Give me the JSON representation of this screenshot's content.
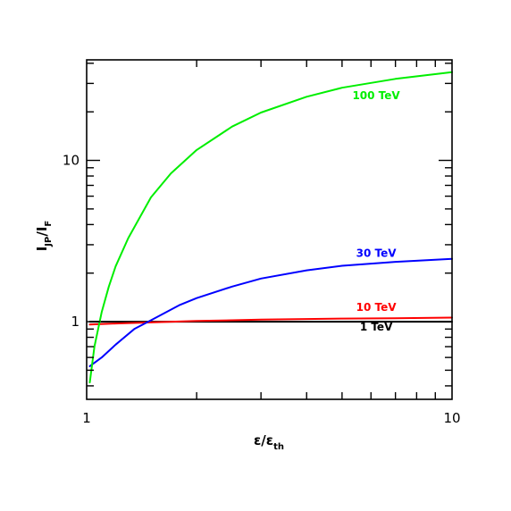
{
  "chart_data": {
    "type": "line",
    "x_scale": "log",
    "y_scale": "log",
    "xlim": [
      1,
      10
    ],
    "ylim": [
      0.33,
      42
    ],
    "xlabel": {
      "main": "ε/ε",
      "sub": "th"
    },
    "ylabel": {
      "main1": "I",
      "sub1": "JP",
      "main2": "/I",
      "sub2": "F"
    },
    "x_ticks": [
      {
        "value": 1,
        "label": "1"
      },
      {
        "value": 10,
        "label": "10"
      }
    ],
    "y_ticks": [
      {
        "value": 1,
        "label": "1"
      },
      {
        "value": 10,
        "label": "10"
      }
    ],
    "grid": false,
    "legend": "inline labels",
    "series": [
      {
        "name": "1 TeV",
        "color": "#000000",
        "x": [
          1.02,
          1.5,
          2,
          3,
          5,
          7,
          10
        ],
        "y": [
          1.0,
          1.0,
          1.0,
          1.0,
          1.0,
          1.0,
          1.0
        ],
        "label_at": {
          "x": 6.2,
          "y": 0.88
        }
      },
      {
        "name": "10 TeV",
        "color": "#ff0000",
        "x": [
          1.02,
          1.2,
          1.5,
          2,
          3,
          5,
          7,
          10
        ],
        "y": [
          0.96,
          0.975,
          0.99,
          1.01,
          1.03,
          1.045,
          1.05,
          1.06
        ],
        "label_at": {
          "x": 6.2,
          "y": 1.17
        }
      },
      {
        "name": "30 TeV",
        "color": "#0000ff",
        "x": [
          1.02,
          1.1,
          1.2,
          1.35,
          1.5,
          1.8,
          2,
          2.5,
          3,
          4,
          5,
          7,
          10
        ],
        "y": [
          0.53,
          0.6,
          0.72,
          0.9,
          1.02,
          1.27,
          1.4,
          1.65,
          1.85,
          2.08,
          2.22,
          2.35,
          2.45
        ],
        "label_at": {
          "x": 6.2,
          "y": 2.52
        }
      },
      {
        "name": "100 TeV",
        "color": "#00ee00",
        "x": [
          1.02,
          1.05,
          1.1,
          1.15,
          1.2,
          1.3,
          1.5,
          1.7,
          2,
          2.5,
          3,
          4,
          5,
          7,
          10
        ],
        "y": [
          0.42,
          0.7,
          1.15,
          1.65,
          2.2,
          3.3,
          5.9,
          8.3,
          11.6,
          16.2,
          19.8,
          24.8,
          28.2,
          32.0,
          35.2
        ],
        "label_at": {
          "x": 6.2,
          "y": 24.0
        }
      }
    ]
  }
}
